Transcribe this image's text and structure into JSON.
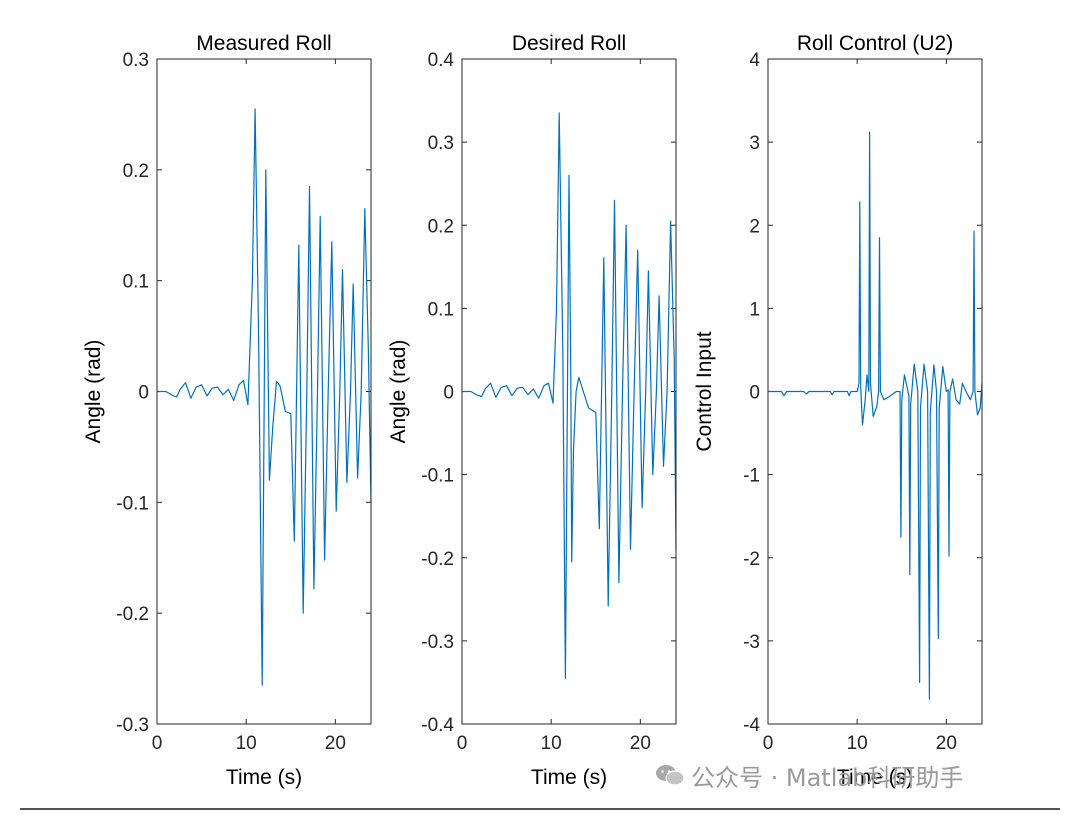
{
  "chart_data": [
    {
      "type": "line",
      "title": "Measured Roll",
      "xlabel": "Time (s)",
      "ylabel": "Angle (rad)",
      "xlim": [
        0,
        24
      ],
      "ylim": [
        -0.3,
        0.3
      ],
      "xticks": [
        0,
        10,
        20
      ],
      "xtick_labels": [
        "0",
        "10",
        "20"
      ],
      "yticks": [
        -0.3,
        -0.2,
        -0.1,
        0,
        0.1,
        0.2,
        0.3
      ],
      "ytick_labels": [
        "-0.3",
        "-0.2",
        "-0.1",
        "0",
        "0.1",
        "0.2",
        "0.3"
      ],
      "series": [
        {
          "name": "Measured Roll",
          "color": "#0072BD",
          "points": [
            [
              0,
              0
            ],
            [
              1,
              0
            ],
            [
              1.6,
              -0.003
            ],
            [
              2.2,
              -0.005
            ],
            [
              2.6,
              0.002
            ],
            [
              3.2,
              0.008
            ],
            [
              3.8,
              -0.006
            ],
            [
              4.4,
              0.004
            ],
            [
              5,
              0.006
            ],
            [
              5.6,
              -0.004
            ],
            [
              6.2,
              0.003
            ],
            [
              6.8,
              0.004
            ],
            [
              7.4,
              -0.003
            ],
            [
              8,
              0.002
            ],
            [
              8.6,
              -0.008
            ],
            [
              9.2,
              0.006
            ],
            [
              9.7,
              0.01
            ],
            [
              10.2,
              -0.012
            ],
            [
              10.7,
              0.1
            ],
            [
              11.0,
              0.255
            ],
            [
              11.4,
              0.05
            ],
            [
              11.8,
              -0.265
            ],
            [
              12.2,
              0.2
            ],
            [
              12.6,
              -0.08
            ],
            [
              13.0,
              -0.03
            ],
            [
              13.4,
              0.009
            ],
            [
              13.8,
              0.005
            ],
            [
              14.4,
              -0.018
            ],
            [
              15.0,
              -0.02
            ],
            [
              15.4,
              -0.135
            ],
            [
              15.9,
              0.132
            ],
            [
              16.4,
              -0.2
            ],
            [
              16.8,
              0.0
            ],
            [
              17.1,
              0.185
            ],
            [
              17.6,
              -0.178
            ],
            [
              18.0,
              0.0
            ],
            [
              18.3,
              0.158
            ],
            [
              18.8,
              -0.152
            ],
            [
              19.2,
              0.0
            ],
            [
              19.6,
              0.135
            ],
            [
              20.1,
              -0.108
            ],
            [
              20.5,
              0.0
            ],
            [
              20.8,
              0.11
            ],
            [
              21.3,
              -0.082
            ],
            [
              21.7,
              0.0
            ],
            [
              22.0,
              0.097
            ],
            [
              22.5,
              -0.078
            ],
            [
              22.9,
              0.0
            ],
            [
              23.3,
              0.165
            ],
            [
              23.7,
              0.04
            ],
            [
              24.0,
              -0.1
            ]
          ]
        }
      ]
    },
    {
      "type": "line",
      "title": "Desired Roll",
      "xlabel": "Time (s)",
      "ylabel": "Angle (rad)",
      "xlim": [
        0,
        24
      ],
      "ylim": [
        -0.4,
        0.4
      ],
      "xticks": [
        0,
        10,
        20
      ],
      "xtick_labels": [
        "0",
        "10",
        "20"
      ],
      "yticks": [
        -0.4,
        -0.3,
        -0.2,
        -0.1,
        0,
        0.1,
        0.2,
        0.3,
        0.4
      ],
      "ytick_labels": [
        "-0.4",
        "-0.3",
        "-0.2",
        "-0.1",
        "0",
        "0.1",
        "0.2",
        "0.3",
        "0.4"
      ],
      "series": [
        {
          "name": "Desired Roll",
          "color": "#0072BD",
          "points": [
            [
              0,
              0
            ],
            [
              1,
              0
            ],
            [
              1.6,
              -0.004
            ],
            [
              2.2,
              -0.006
            ],
            [
              2.6,
              0.003
            ],
            [
              3.2,
              0.01
            ],
            [
              3.8,
              -0.007
            ],
            [
              4.4,
              0.005
            ],
            [
              5,
              0.007
            ],
            [
              5.6,
              -0.005
            ],
            [
              6.2,
              0.004
            ],
            [
              6.8,
              0.005
            ],
            [
              7.4,
              -0.004
            ],
            [
              8,
              0.003
            ],
            [
              8.6,
              -0.008
            ],
            [
              9.2,
              0.007
            ],
            [
              9.7,
              0.01
            ],
            [
              10.2,
              -0.014
            ],
            [
              10.6,
              0.1
            ],
            [
              10.9,
              0.335
            ],
            [
              11.3,
              0.05
            ],
            [
              11.6,
              -0.345
            ],
            [
              12.0,
              0.26
            ],
            [
              12.2,
              0.02
            ],
            [
              12.3,
              -0.205
            ],
            [
              12.5,
              -0.07
            ],
            [
              12.8,
              0.0
            ],
            [
              13.1,
              0.017
            ],
            [
              13.6,
              0.0
            ],
            [
              14.2,
              -0.02
            ],
            [
              15.0,
              -0.025
            ],
            [
              15.4,
              -0.165
            ],
            [
              15.9,
              0.161
            ],
            [
              16.4,
              -0.258
            ],
            [
              16.8,
              0.0
            ],
            [
              17.1,
              0.23
            ],
            [
              17.6,
              -0.23
            ],
            [
              18.0,
              0.0
            ],
            [
              18.4,
              0.2
            ],
            [
              18.9,
              -0.19
            ],
            [
              19.3,
              0.0
            ],
            [
              19.7,
              0.17
            ],
            [
              20.2,
              -0.14
            ],
            [
              20.6,
              0.0
            ],
            [
              20.9,
              0.145
            ],
            [
              21.4,
              -0.1
            ],
            [
              21.8,
              0.0
            ],
            [
              22.1,
              0.115
            ],
            [
              22.6,
              -0.09
            ],
            [
              23.0,
              0.0
            ],
            [
              23.4,
              0.205
            ],
            [
              23.8,
              0.04
            ],
            [
              24.0,
              -0.19
            ]
          ]
        }
      ]
    },
    {
      "type": "line",
      "title": "Roll Control (U2)",
      "xlabel": "Time (s)",
      "ylabel": "Control Input",
      "xlim": [
        0,
        24
      ],
      "ylim": [
        -4,
        4
      ],
      "xticks": [
        0,
        10,
        20
      ],
      "xtick_labels": [
        "0",
        "10",
        "20"
      ],
      "yticks": [
        -4,
        -3,
        -2,
        -1,
        0,
        1,
        2,
        3,
        4
      ],
      "ytick_labels": [
        "-4",
        "-3",
        "-2",
        "-1",
        "0",
        "1",
        "2",
        "3",
        "4"
      ],
      "series": [
        {
          "name": "Roll Control (U2)",
          "color": "#0072BD",
          "points": [
            [
              0,
              0
            ],
            [
              1.5,
              0.0
            ],
            [
              1.8,
              -0.05
            ],
            [
              2.1,
              0.0
            ],
            [
              4,
              0.0
            ],
            [
              4.3,
              -0.03
            ],
            [
              4.6,
              0.0
            ],
            [
              7,
              0.0
            ],
            [
              7.2,
              -0.04
            ],
            [
              7.4,
              0.0
            ],
            [
              8.9,
              0.0
            ],
            [
              9.1,
              -0.05
            ],
            [
              9.3,
              0.0
            ],
            [
              10.0,
              0.0
            ],
            [
              10.2,
              0.1
            ],
            [
              10.3,
              2.28
            ],
            [
              10.4,
              0.05
            ],
            [
              10.6,
              -0.4
            ],
            [
              10.9,
              -0.1
            ],
            [
              11.1,
              0.2
            ],
            [
              11.3,
              0.0
            ],
            [
              11.4,
              3.12
            ],
            [
              11.5,
              0.1
            ],
            [
              11.8,
              -0.3
            ],
            [
              12.2,
              -0.18
            ],
            [
              12.4,
              0.0
            ],
            [
              12.5,
              1.85
            ],
            [
              12.6,
              0.0
            ],
            [
              13.0,
              -0.1
            ],
            [
              13.6,
              -0.06
            ],
            [
              14.4,
              0.0
            ],
            [
              14.8,
              0.0
            ],
            [
              14.9,
              -1.75
            ],
            [
              15.0,
              -0.1
            ],
            [
              15.3,
              0.2
            ],
            [
              15.7,
              0.0
            ],
            [
              15.8,
              -0.05
            ],
            [
              15.9,
              -2.2
            ],
            [
              16.0,
              -0.15
            ],
            [
              16.4,
              0.33
            ],
            [
              16.8,
              0.0
            ],
            [
              17.0,
              -3.5
            ],
            [
              17.1,
              -0.2
            ],
            [
              17.5,
              0.33
            ],
            [
              17.9,
              0.0
            ],
            [
              18.1,
              -3.7
            ],
            [
              18.2,
              -0.25
            ],
            [
              18.6,
              0.32
            ],
            [
              18.9,
              0.0
            ],
            [
              19.1,
              -2.97
            ],
            [
              19.2,
              -0.2
            ],
            [
              19.6,
              0.3
            ],
            [
              20.0,
              0.0
            ],
            [
              20.2,
              0.02
            ],
            [
              20.3,
              -1.98
            ],
            [
              20.4,
              0.0
            ],
            [
              20.7,
              0.15
            ],
            [
              21.1,
              -0.1
            ],
            [
              21.5,
              -0.15
            ],
            [
              21.8,
              0.1
            ],
            [
              22.2,
              0.0
            ],
            [
              22.7,
              -0.1
            ],
            [
              23.0,
              0.0
            ],
            [
              23.1,
              1.93
            ],
            [
              23.2,
              0.0
            ],
            [
              23.5,
              -0.28
            ],
            [
              23.8,
              -0.2
            ],
            [
              24.0,
              0.1
            ]
          ]
        }
      ]
    }
  ],
  "watermark": {
    "icon": "wechat-icon",
    "text": "公众号 · Matlab科研助手"
  }
}
